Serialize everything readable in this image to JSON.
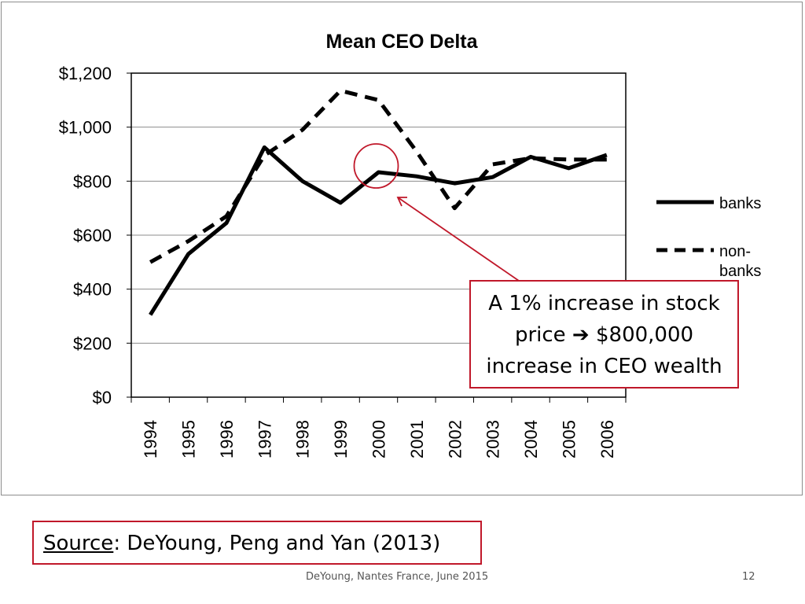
{
  "chart_data": {
    "type": "line",
    "title": "Mean CEO Delta",
    "xlabel": "",
    "ylabel": "",
    "categories": [
      "1994",
      "1995",
      "1996",
      "1997",
      "1998",
      "1999",
      "2000",
      "2001",
      "2002",
      "2003",
      "2004",
      "2005",
      "2006"
    ],
    "ylim": [
      0,
      1200
    ],
    "yticks": [
      0,
      200,
      400,
      600,
      800,
      1000,
      1200
    ],
    "ytick_labels": [
      "$0",
      "$200",
      "$400",
      "$600",
      "$800",
      "$1,000",
      "$1,200"
    ],
    "grid": "horizontal",
    "legend_position": "right",
    "series": [
      {
        "name": "banks",
        "style": "solid",
        "values": [
          305,
          530,
          645,
          925,
          800,
          720,
          833,
          818,
          792,
          815,
          890,
          848,
          897
        ]
      },
      {
        "name": "non-banks",
        "style": "dashed",
        "values": [
          500,
          578,
          670,
          895,
          990,
          1135,
          1100,
          910,
          700,
          862,
          885,
          880,
          880
        ]
      }
    ],
    "annotation_point": {
      "category": "2000",
      "value": 833
    }
  },
  "callout": {
    "line1": "A 1% increase in stock",
    "line2_pre": "price",
    "line2_arrow": "➔",
    "line2_post": "$800,000",
    "line3": "increase in CEO wealth"
  },
  "source": {
    "label": "Source",
    "text": ":  DeYoung, Peng and Yan (2013)"
  },
  "footer": {
    "text": "DeYoung, Nantes France, June 2015",
    "page": "12"
  },
  "colors": {
    "accent": "#c0182a",
    "grid": "#8c8c8c",
    "line": "#000000"
  }
}
